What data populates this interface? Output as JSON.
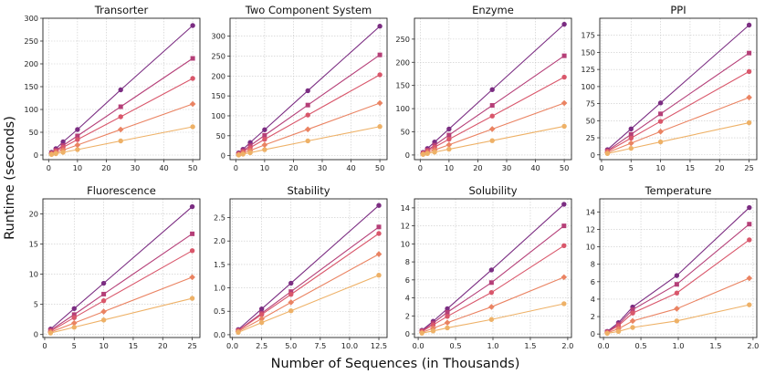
{
  "figure": {
    "ylabel": "Runtime (seconds)",
    "xlabel": "Number of Sequences (in Thousands)"
  },
  "series_colors": [
    "#7b2d82",
    "#b53f78",
    "#d9576b",
    "#ea8362",
    "#eeb167"
  ],
  "chart_data": [
    {
      "type": "line",
      "title": "Transorter",
      "x": [
        1,
        2.5,
        5,
        10,
        25,
        50
      ],
      "xlim": [
        -2,
        52.5
      ],
      "ylim": [
        -10,
        300
      ],
      "xticks": [
        0,
        10,
        20,
        30,
        40,
        50
      ],
      "yticks": [
        0,
        50,
        100,
        150,
        200,
        250,
        300
      ],
      "grid": true,
      "series": [
        {
          "values": [
            6,
            14,
            29,
            56,
            143,
            284
          ]
        },
        {
          "values": [
            4.5,
            10.5,
            21,
            42,
            106,
            212
          ]
        },
        {
          "values": [
            3.5,
            8.5,
            17,
            34,
            84,
            168
          ]
        },
        {
          "values": [
            2.2,
            5.5,
            11,
            22,
            56,
            112
          ]
        },
        {
          "values": [
            1.3,
            3,
            6,
            12,
            31,
            62
          ]
        }
      ]
    },
    {
      "type": "line",
      "title": "Two Component System",
      "x": [
        1,
        2.5,
        5,
        10,
        25,
        50
      ],
      "xlim": [
        -2,
        52.5
      ],
      "ylim": [
        -10,
        345
      ],
      "xticks": [
        0,
        10,
        20,
        30,
        40,
        50
      ],
      "yticks": [
        0,
        50,
        100,
        150,
        200,
        250,
        300
      ],
      "grid": true,
      "series": [
        {
          "values": [
            7,
            16,
            33,
            65,
            163,
            325
          ]
        },
        {
          "values": [
            5,
            12.5,
            25,
            51,
            127,
            253
          ]
        },
        {
          "values": [
            4,
            10,
            20,
            41,
            102,
            203
          ]
        },
        {
          "values": [
            2.7,
            6.6,
            13,
            27,
            66,
            132
          ]
        },
        {
          "values": [
            1.5,
            3.7,
            7.3,
            15,
            37,
            73
          ]
        }
      ]
    },
    {
      "type": "line",
      "title": "Enzyme",
      "x": [
        1,
        2.5,
        5,
        10,
        25,
        50
      ],
      "xlim": [
        -2,
        52.5
      ],
      "ylim": [
        -10,
        295
      ],
      "xticks": [
        0,
        10,
        20,
        30,
        40,
        50
      ],
      "yticks": [
        0,
        50,
        100,
        150,
        200,
        250
      ],
      "grid": true,
      "series": [
        {
          "values": [
            5.7,
            14,
            28,
            56,
            141,
            282
          ]
        },
        {
          "values": [
            4.3,
            10.7,
            21,
            43,
            107,
            214
          ]
        },
        {
          "values": [
            3.4,
            8.4,
            17,
            34,
            84,
            168
          ]
        },
        {
          "values": [
            2.2,
            5.5,
            11,
            22,
            56,
            112
          ]
        },
        {
          "values": [
            1.3,
            3.1,
            6.2,
            12.5,
            31,
            62
          ]
        }
      ]
    },
    {
      "type": "line",
      "title": "PPI",
      "x": [
        1,
        5,
        10,
        25
      ],
      "xlim": [
        -0.3,
        26.3
      ],
      "ylim": [
        -7,
        200
      ],
      "xticks": [
        0,
        5,
        10,
        15,
        20,
        25
      ],
      "yticks": [
        0,
        25,
        50,
        75,
        100,
        125,
        150,
        175
      ],
      "grid": true,
      "series": [
        {
          "values": [
            7.6,
            38,
            76,
            190
          ]
        },
        {
          "values": [
            6,
            30,
            60,
            149
          ]
        },
        {
          "values": [
            4.9,
            24.5,
            49,
            122
          ]
        },
        {
          "values": [
            3.4,
            17,
            34,
            84
          ]
        },
        {
          "values": [
            1.9,
            9.5,
            19,
            47
          ]
        }
      ]
    },
    {
      "type": "line",
      "title": "Fluorescence",
      "x": [
        1,
        5,
        10,
        25
      ],
      "xlim": [
        -0.3,
        26.3
      ],
      "ylim": [
        -0.5,
        22.5
      ],
      "xticks": [
        0,
        5,
        10,
        15,
        20,
        25
      ],
      "yticks": [
        0,
        5,
        10,
        15,
        20
      ],
      "grid": true,
      "series": [
        {
          "values": [
            0.9,
            4.3,
            8.5,
            21.2
          ]
        },
        {
          "values": [
            0.7,
            3.3,
            6.7,
            16.7
          ]
        },
        {
          "values": [
            0.55,
            2.8,
            5.6,
            13.9
          ]
        },
        {
          "values": [
            0.4,
            1.9,
            3.8,
            9.5
          ]
        },
        {
          "values": [
            0.25,
            1.2,
            2.4,
            6
          ]
        }
      ]
    },
    {
      "type": "line",
      "title": "Stability",
      "x": [
        0.5,
        2.5,
        5,
        12.5
      ],
      "xlim": [
        -0.2,
        13.2
      ],
      "ylim": [
        -0.06,
        2.9
      ],
      "xticks": [
        0,
        2.5,
        5,
        7.5,
        10,
        12.5
      ],
      "xtick_labels": [
        "0.0",
        "2.5",
        "5.0",
        "7.5",
        "10.0",
        "12.5"
      ],
      "yticks": [
        0,
        0.5,
        1,
        1.5,
        2,
        2.5
      ],
      "ytick_labels": [
        "0.0",
        "0.5",
        "1.0",
        "1.5",
        "2.0",
        "2.5"
      ],
      "grid": true,
      "series": [
        {
          "values": [
            0.11,
            0.55,
            1.1,
            2.76
          ]
        },
        {
          "values": [
            0.09,
            0.46,
            0.92,
            2.3
          ]
        },
        {
          "values": [
            0.085,
            0.43,
            0.86,
            2.16
          ]
        },
        {
          "values": [
            0.07,
            0.34,
            0.69,
            1.72
          ]
        },
        {
          "values": [
            0.05,
            0.26,
            0.51,
            1.27
          ]
        }
      ]
    },
    {
      "type": "line",
      "title": "Solubility",
      "x": [
        0.05,
        0.2,
        0.39,
        0.98,
        1.95
      ],
      "xlim": [
        -0.05,
        2.05
      ],
      "ylim": [
        -0.4,
        15
      ],
      "xticks": [
        0,
        0.5,
        1,
        1.5,
        2
      ],
      "xtick_labels": [
        "0.0",
        "0.5",
        "1.0",
        "1.5",
        "2.0"
      ],
      "yticks": [
        0,
        2,
        4,
        6,
        8,
        10,
        12,
        14
      ],
      "grid": true,
      "series": [
        {
          "values": [
            0.4,
            1.4,
            2.8,
            7.1,
            14.4
          ]
        },
        {
          "values": [
            0.33,
            1.2,
            2.4,
            5.7,
            12
          ]
        },
        {
          "values": [
            0.27,
            1,
            1.95,
            4.6,
            9.8
          ]
        },
        {
          "values": [
            0.17,
            0.63,
            1.25,
            3,
            6.3
          ]
        },
        {
          "values": [
            0.09,
            0.33,
            0.67,
            1.6,
            3.35
          ]
        }
      ]
    },
    {
      "type": "line",
      "title": "Temperature",
      "x": [
        0.05,
        0.2,
        0.39,
        0.98,
        1.95
      ],
      "xlim": [
        -0.05,
        2.05
      ],
      "ylim": [
        -0.4,
        15.5
      ],
      "xticks": [
        0,
        0.5,
        1,
        1.5,
        2
      ],
      "xtick_labels": [
        "0.0",
        "0.5",
        "1.0",
        "1.5",
        "2.0"
      ],
      "yticks": [
        0,
        2,
        4,
        6,
        8,
        10,
        12,
        14
      ],
      "grid": true,
      "series": [
        {
          "values": [
            0.3,
            1.3,
            3.1,
            6.7,
            14.5
          ]
        },
        {
          "values": [
            0.25,
            1.1,
            2.8,
            5.7,
            12.6
          ]
        },
        {
          "values": [
            0.2,
            0.95,
            2.4,
            4.7,
            10.8
          ]
        },
        {
          "values": [
            0.13,
            0.6,
            1.5,
            2.9,
            6.4
          ]
        },
        {
          "values": [
            0.07,
            0.3,
            0.75,
            1.5,
            3.35
          ]
        }
      ]
    }
  ]
}
